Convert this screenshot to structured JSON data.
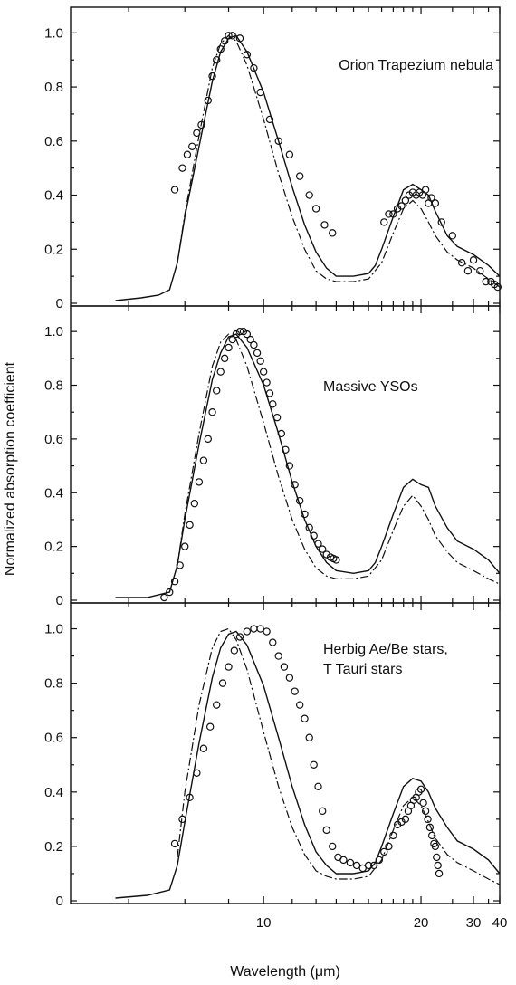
{
  "chart_data": {
    "type": "line",
    "xlabel": "Wavelength (μm)",
    "ylabel": "Normalized absorption coefficient",
    "xscale": "reciprocal",
    "xlim": [
      6.2,
      40
    ],
    "x_ticks": [
      10,
      20,
      30,
      40
    ],
    "x_tick_labels": [
      "10",
      "20",
      "30",
      "40"
    ],
    "ylim": [
      0,
      1.05
    ],
    "y_ticks": [
      0,
      0.2,
      0.4,
      0.6,
      0.8,
      1.0
    ],
    "y_tick_labels": [
      "0",
      "0.2",
      "0.4",
      "0.6",
      "0.8",
      "1.0"
    ],
    "grid": false,
    "legend": "none",
    "panels": [
      {
        "annotation": [
          "Orion Trapezium nebula"
        ],
        "series": [
          {
            "style": "solid",
            "x": [
              6.8,
              7.2,
              7.5,
              7.7,
              7.85,
              8.0,
              8.3,
              8.6,
              8.8,
              9.0,
              9.2,
              9.5,
              10.0,
              10.5,
              11.0,
              11.5,
              12.0,
              12.5,
              13.0,
              14.0,
              15.0,
              15.5,
              16.0,
              17.0,
              18.0,
              19.0,
              20.0,
              21.0,
              22.0,
              24.0,
              26.0,
              30.0,
              35.0,
              40.0
            ],
            "y": [
              0.01,
              0.02,
              0.03,
              0.05,
              0.15,
              0.32,
              0.58,
              0.82,
              0.93,
              0.98,
              0.99,
              0.93,
              0.78,
              0.6,
              0.43,
              0.29,
              0.19,
              0.13,
              0.1,
              0.1,
              0.11,
              0.14,
              0.2,
              0.32,
              0.42,
              0.44,
              0.42,
              0.4,
              0.34,
              0.25,
              0.21,
              0.18,
              0.14,
              0.1
            ]
          },
          {
            "style": "dash-dot",
            "x": [
              7.85,
              8.0,
              8.3,
              8.6,
              8.8,
              9.0,
              9.2,
              9.5,
              10.0,
              10.5,
              11.0,
              11.5,
              12.0,
              12.5,
              13.0,
              14.0,
              15.0,
              16.0,
              17.0,
              18.0,
              19.0,
              20.0,
              21.0,
              22.0,
              24.0,
              26.0,
              30.0,
              35.0,
              40.0
            ],
            "y": [
              0.15,
              0.33,
              0.62,
              0.87,
              0.96,
              0.99,
              0.97,
              0.88,
              0.68,
              0.48,
              0.32,
              0.2,
              0.12,
              0.09,
              0.08,
              0.08,
              0.09,
              0.15,
              0.26,
              0.35,
              0.38,
              0.35,
              0.3,
              0.25,
              0.19,
              0.16,
              0.13,
              0.09,
              0.06
            ]
          },
          {
            "style": "circles",
            "x": [
              7.8,
              7.95,
              8.05,
              8.15,
              8.25,
              8.35,
              8.5,
              8.6,
              8.7,
              8.8,
              8.9,
              9.0,
              9.1,
              9.3,
              9.5,
              9.7,
              9.9,
              10.2,
              10.5,
              10.9,
              11.3,
              11.7,
              12.0,
              12.4,
              12.8,
              16.2,
              16.6,
              17.0,
              17.4,
              17.8,
              18.2,
              18.6,
              19.0,
              19.4,
              19.8,
              20.2,
              20.6,
              21.0,
              21.4,
              22.0,
              23.0,
              25.0,
              27.0,
              28.5,
              30.0,
              32.0,
              34.0,
              36.0,
              37.5,
              39.0
            ],
            "y": [
              0.42,
              0.5,
              0.55,
              0.58,
              0.63,
              0.66,
              0.75,
              0.84,
              0.9,
              0.94,
              0.97,
              0.99,
              0.99,
              0.98,
              0.92,
              0.87,
              0.78,
              0.68,
              0.6,
              0.55,
              0.47,
              0.4,
              0.35,
              0.29,
              0.26,
              0.3,
              0.33,
              0.33,
              0.35,
              0.36,
              0.38,
              0.4,
              0.41,
              0.4,
              0.41,
              0.4,
              0.42,
              0.37,
              0.39,
              0.37,
              0.3,
              0.25,
              0.15,
              0.12,
              0.16,
              0.12,
              0.08,
              0.08,
              0.07,
              0.06
            ]
          }
        ]
      },
      {
        "annotation": [
          "Massive YSOs"
        ],
        "series": [
          {
            "style": "solid",
            "x": [
              6.8,
              7.3,
              7.7,
              7.85,
              8.0,
              8.3,
              8.6,
              8.8,
              9.0,
              9.2,
              9.5,
              10.0,
              10.5,
              11.0,
              11.5,
              12.0,
              12.5,
              13.0,
              14.0,
              15.0,
              15.5,
              16.0,
              17.0,
              18.0,
              19.0,
              20.0,
              21.0,
              22.0,
              24.0,
              26.0,
              30.0,
              35.0,
              40.0
            ],
            "y": [
              0.01,
              0.01,
              0.03,
              0.13,
              0.3,
              0.58,
              0.82,
              0.92,
              0.98,
              0.99,
              0.94,
              0.8,
              0.62,
              0.44,
              0.3,
              0.2,
              0.14,
              0.11,
              0.1,
              0.11,
              0.14,
              0.2,
              0.32,
              0.42,
              0.45,
              0.43,
              0.42,
              0.35,
              0.27,
              0.22,
              0.19,
              0.15,
              0.1
            ]
          },
          {
            "style": "dash-dot",
            "x": [
              7.85,
              8.0,
              8.3,
              8.6,
              8.8,
              9.0,
              9.2,
              9.5,
              10.0,
              10.5,
              11.0,
              11.5,
              12.0,
              12.5,
              13.0,
              14.0,
              15.0,
              16.0,
              17.0,
              18.0,
              19.0,
              20.0,
              21.0,
              22.0,
              24.0,
              26.0,
              30.0,
              35.0,
              40.0
            ],
            "y": [
              0.13,
              0.32,
              0.62,
              0.87,
              0.96,
              0.99,
              0.97,
              0.87,
              0.66,
              0.46,
              0.3,
              0.19,
              0.12,
              0.09,
              0.08,
              0.08,
              0.09,
              0.15,
              0.26,
              0.35,
              0.39,
              0.35,
              0.3,
              0.24,
              0.18,
              0.14,
              0.11,
              0.08,
              0.06
            ]
          },
          {
            "style": "circles",
            "x": [
              7.6,
              7.7,
              7.8,
              7.9,
              8.0,
              8.1,
              8.2,
              8.3,
              8.4,
              8.5,
              8.6,
              8.7,
              8.8,
              8.9,
              9.0,
              9.1,
              9.2,
              9.3,
              9.4,
              9.5,
              9.6,
              9.7,
              9.8,
              9.9,
              10.0,
              10.1,
              10.2,
              10.3,
              10.45,
              10.6,
              10.75,
              10.9,
              11.1,
              11.3,
              11.5,
              11.7,
              11.9,
              12.1,
              12.3,
              12.5,
              12.7,
              12.85,
              13.0
            ],
            "y": [
              0.01,
              0.03,
              0.07,
              0.13,
              0.2,
              0.28,
              0.36,
              0.44,
              0.52,
              0.6,
              0.7,
              0.78,
              0.85,
              0.9,
              0.94,
              0.97,
              0.99,
              1.0,
              1.0,
              0.99,
              0.97,
              0.95,
              0.92,
              0.89,
              0.85,
              0.81,
              0.77,
              0.73,
              0.68,
              0.62,
              0.56,
              0.5,
              0.43,
              0.37,
              0.32,
              0.27,
              0.24,
              0.21,
              0.19,
              0.17,
              0.16,
              0.155,
              0.15
            ]
          }
        ]
      },
      {
        "annotation": [
          "Herbig Ae/Be stars,",
          "T Tauri stars"
        ],
        "series": [
          {
            "style": "solid",
            "x": [
              6.8,
              7.3,
              7.7,
              7.85,
              8.0,
              8.3,
              8.6,
              8.8,
              9.0,
              9.2,
              9.5,
              10.0,
              10.5,
              11.0,
              11.5,
              12.0,
              12.5,
              13.0,
              14.0,
              15.0,
              15.5,
              16.0,
              17.0,
              18.0,
              19.0,
              20.0,
              21.0,
              22.0,
              24.0,
              26.0,
              30.0,
              35.0,
              40.0
            ],
            "y": [
              0.01,
              0.02,
              0.04,
              0.13,
              0.29,
              0.58,
              0.82,
              0.93,
              0.98,
              0.99,
              0.94,
              0.79,
              0.6,
              0.42,
              0.28,
              0.18,
              0.13,
              0.1,
              0.1,
              0.11,
              0.14,
              0.2,
              0.32,
              0.42,
              0.45,
              0.44,
              0.4,
              0.34,
              0.27,
              0.22,
              0.19,
              0.15,
              0.1
            ]
          },
          {
            "style": "dash-dot",
            "x": [
              7.85,
              8.0,
              8.3,
              8.6,
              8.8,
              9.0,
              9.2,
              9.5,
              10.0,
              10.5,
              11.0,
              11.5,
              12.0,
              12.5,
              13.0,
              14.0,
              15.0,
              16.0,
              17.0,
              18.0,
              19.0,
              20.0,
              21.0,
              22.0,
              24.0,
              26.0,
              30.0,
              35.0,
              40.0
            ],
            "y": [
              0.16,
              0.4,
              0.72,
              0.93,
              0.99,
              1.0,
              0.96,
              0.85,
              0.62,
              0.42,
              0.27,
              0.17,
              0.11,
              0.09,
              0.08,
              0.08,
              0.09,
              0.15,
              0.26,
              0.35,
              0.38,
              0.35,
              0.29,
              0.23,
              0.17,
              0.14,
              0.11,
              0.08,
              0.06
            ]
          },
          {
            "style": "circles",
            "x": [
              7.8,
              7.95,
              8.1,
              8.25,
              8.4,
              8.55,
              8.7,
              8.85,
              9.0,
              9.15,
              9.3,
              9.5,
              9.7,
              9.9,
              10.1,
              10.3,
              10.5,
              10.7,
              10.9,
              11.1,
              11.3,
              11.5,
              11.7,
              11.9,
              12.1,
              12.3,
              12.5,
              12.8,
              13.1,
              13.4,
              13.8,
              14.2,
              14.6,
              15.0,
              15.4,
              15.8,
              16.2,
              16.6,
              17.0,
              17.4,
              17.8,
              18.2,
              18.5,
              18.8,
              19.1,
              19.4,
              19.7,
              20.0,
              20.3,
              20.6,
              20.9,
              21.2,
              21.5,
              21.8,
              22.0,
              22.2,
              22.4,
              22.6
            ],
            "y": [
              0.21,
              0.3,
              0.38,
              0.47,
              0.56,
              0.64,
              0.72,
              0.8,
              0.86,
              0.92,
              0.97,
              0.99,
              1.0,
              1.0,
              0.99,
              0.95,
              0.9,
              0.86,
              0.82,
              0.77,
              0.72,
              0.67,
              0.6,
              0.5,
              0.42,
              0.33,
              0.26,
              0.2,
              0.16,
              0.15,
              0.14,
              0.13,
              0.12,
              0.13,
              0.13,
              0.15,
              0.18,
              0.2,
              0.24,
              0.28,
              0.29,
              0.3,
              0.33,
              0.35,
              0.37,
              0.38,
              0.4,
              0.41,
              0.36,
              0.33,
              0.3,
              0.27,
              0.24,
              0.21,
              0.2,
              0.16,
              0.13,
              0.1
            ]
          }
        ]
      }
    ]
  }
}
